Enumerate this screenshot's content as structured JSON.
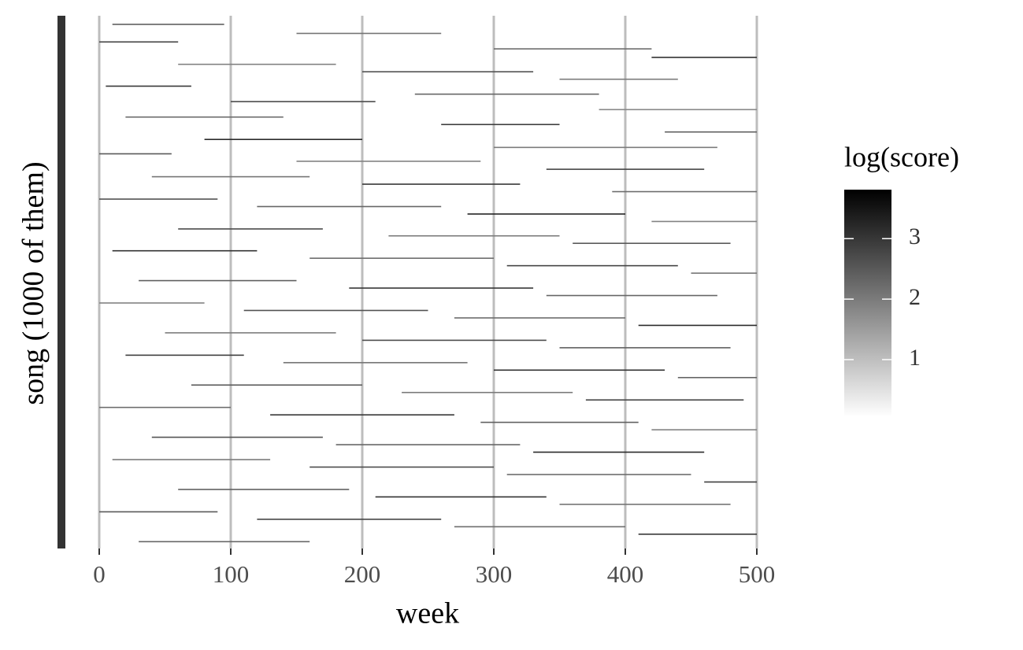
{
  "chart_data": {
    "type": "heatmap",
    "x_label": "week",
    "y_label": "song (1000 of them)",
    "xlim": [
      0,
      500
    ],
    "xticks": [
      0,
      100,
      200,
      300,
      400,
      500
    ],
    "ylim": [
      0,
      1000
    ],
    "grid": true,
    "legend_title": "log(score)",
    "color_lim": [
      0.05,
      3.81
    ],
    "color_ticks": [
      1,
      2,
      3
    ],
    "color_low": "#ffffff",
    "color_high": "#000000",
    "segments": {
      "song": [
        15,
        32,
        48,
        61,
        77,
        90,
        104,
        118,
        131,
        146,
        160,
        175,
        189,
        203,
        217,
        231,
        246,
        258,
        272,
        287,
        301,
        315,
        329,
        343,
        357,
        371,
        385,
        399,
        412,
        426,
        440,
        454,
        468,
        482,
        496,
        510,
        524,
        538,
        552,
        566,
        580,
        594,
        608,
        622,
        636,
        650,
        664,
        678,
        692,
        706,
        720,
        734,
        748,
        762,
        776,
        790,
        804,
        818,
        832,
        846,
        860,
        874,
        888,
        902,
        916,
        930,
        944,
        958,
        972,
        986
      ],
      "week_start": [
        10,
        150,
        0,
        300,
        420,
        60,
        200,
        350,
        5,
        240,
        100,
        380,
        20,
        260,
        430,
        80,
        300,
        0,
        150,
        340,
        40,
        200,
        390,
        0,
        120,
        280,
        420,
        60,
        220,
        360,
        10,
        160,
        310,
        450,
        30,
        190,
        340,
        0,
        110,
        270,
        410,
        50,
        200,
        350,
        20,
        140,
        300,
        440,
        70,
        230,
        370,
        0,
        130,
        290,
        420,
        40,
        180,
        330,
        10,
        160,
        310,
        460,
        60,
        210,
        350,
        0,
        120,
        270,
        410,
        30
      ],
      "week_end": [
        95,
        260,
        60,
        420,
        500,
        180,
        330,
        440,
        70,
        380,
        210,
        500,
        140,
        350,
        500,
        200,
        470,
        55,
        290,
        460,
        160,
        320,
        500,
        90,
        260,
        400,
        500,
        170,
        350,
        480,
        120,
        300,
        440,
        500,
        150,
        330,
        470,
        80,
        250,
        400,
        500,
        180,
        340,
        480,
        110,
        280,
        430,
        500,
        200,
        360,
        490,
        100,
        270,
        410,
        500,
        170,
        320,
        460,
        130,
        300,
        450,
        500,
        190,
        340,
        480,
        90,
        260,
        400,
        500,
        160
      ],
      "value": [
        2.4,
        2.1,
        2.8,
        2.2,
        3.1,
        1.9,
        2.6,
        2.0,
        3.0,
        2.3,
        2.7,
        1.8,
        2.2,
        2.9,
        2.4,
        3.2,
        2.0,
        2.5,
        1.9,
        2.8,
        2.1,
        3.0,
        2.2,
        2.6,
        2.3,
        3.3,
        1.9,
        2.7,
        2.0,
        2.5,
        3.1,
        2.2,
        2.8,
        2.1,
        2.4,
        3.0,
        2.3,
        1.9,
        2.6,
        2.2,
        3.2,
        2.0,
        2.7,
        2.4,
        2.9,
        2.1,
        3.1,
        2.3,
        2.5,
        2.0,
        2.8,
        2.2,
        3.0,
        2.4,
        1.9,
        2.6,
        2.3,
        3.2,
        2.0,
        2.7,
        2.2,
        2.9,
        2.4,
        3.1,
        2.1,
        2.5,
        2.8,
        2.2,
        3.0,
        2.3
      ]
    }
  }
}
